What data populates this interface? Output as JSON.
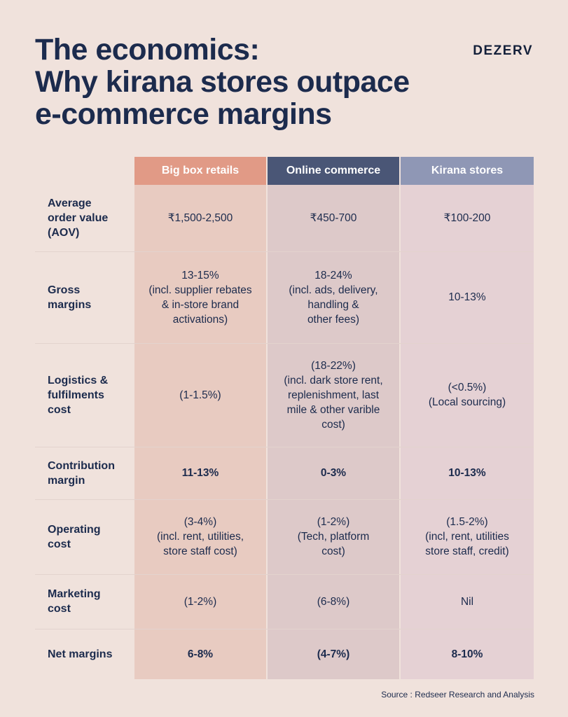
{
  "title_lines": [
    "The economics:",
    "Why kirana stores outpace",
    "e-commerce margins"
  ],
  "brand": "DEZERV",
  "columns": [
    "Big box retails",
    "Online commerce",
    "Kirana stores"
  ],
  "rows": [
    {
      "label": "Average\norder value\n(AOV)",
      "cells": [
        "₹1,500-2,500",
        "₹450-700",
        "₹100-200"
      ],
      "bold": false
    },
    {
      "label": "Gross\nmargins",
      "cells": [
        "13-15%\n(incl. supplier rebates\n& in-store brand\nactivations)",
        "18-24%\n(incl. ads, delivery,\nhandling &\nother fees)",
        "10-13%"
      ],
      "bold": false
    },
    {
      "label": "Logistics &\nfulfilments\ncost",
      "cells": [
        "(1-1.5%)",
        "(18-22%)\n(incl. dark store rent,\nreplenishment, last\nmile & other varible\ncost)",
        "(<0.5%)\n(Local sourcing)"
      ],
      "bold": false
    },
    {
      "label": "Contribution\nmargin",
      "cells": [
        "11-13%",
        "0-3%",
        "10-13%"
      ],
      "bold": true
    },
    {
      "label": "Operating\ncost",
      "cells": [
        "(3-4%)\n(incl. rent, utilities,\nstore staff cost)",
        "(1-2%)\n(Tech, platform\ncost)",
        "(1.5-2%)\n(incl, rent, utilities\nstore staff, credit)"
      ],
      "bold": false
    },
    {
      "label": "Marketing\ncost",
      "cells": [
        "(1-2%)",
        "(6-8%)",
        "Nil"
      ],
      "bold": false
    },
    {
      "label": "Net margins",
      "cells": [
        "6-8%",
        "(4-7%)",
        "8-10%"
      ],
      "bold": true
    }
  ],
  "source": "Source : Redseer Research and Analysis",
  "colors": {
    "background": "#f0e2dc",
    "title": "#1c2b4d",
    "big_box_header": "#e19a86",
    "online_header": "#4a5676",
    "kirana_header": "#8f97b5"
  }
}
